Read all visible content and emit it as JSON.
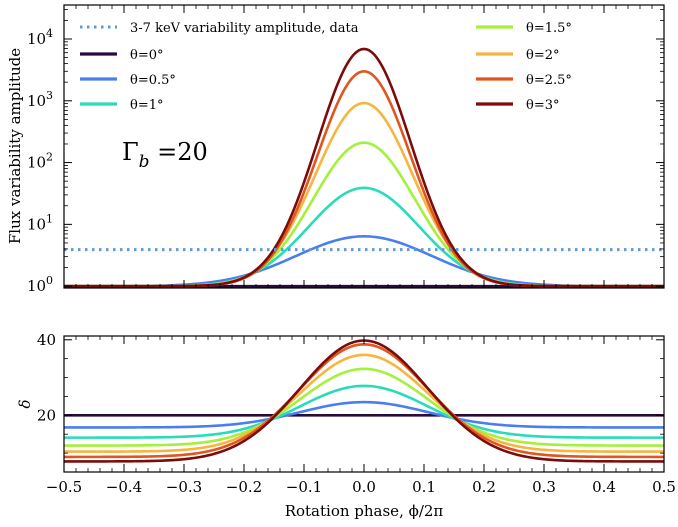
{
  "chart_data": [
    {
      "type": "line",
      "panel": "top",
      "xlim": [
        -0.5,
        0.5
      ],
      "ylim_log10": [
        -0.03,
        4.55
      ],
      "yscale": "log",
      "ylabel": "Flux variability amplitude",
      "annotation": "Γ_b =20",
      "annotation_parts": {
        "base": "Γ",
        "sub": "b",
        "rest": " =20"
      },
      "yticks": [
        {
          "value": 1,
          "base": "10",
          "exp": "0"
        },
        {
          "value": 10,
          "base": "10",
          "exp": "1"
        },
        {
          "value": 100,
          "base": "10",
          "exp": "2"
        },
        {
          "value": 1000,
          "base": "10",
          "exp": "3"
        },
        {
          "value": 10000,
          "base": "10",
          "exp": "4"
        }
      ],
      "reference_line": {
        "name": "3-7 keV variability amplitude, data",
        "y": 3.9,
        "color": "#5b9bd5",
        "style": "dotted"
      },
      "series": [
        {
          "name": "θ=0°",
          "color": "#2a0a3d",
          "peak": 1.0,
          "width": 0.16
        },
        {
          "name": "θ=0.5°",
          "color": "#4a7ef0",
          "peak": 6.4,
          "width": 0.16
        },
        {
          "name": "θ=1°",
          "color": "#29dcb8",
          "peak": 39,
          "width": 0.13
        },
        {
          "name": "θ=1.5°",
          "color": "#a4f03c",
          "peak": 210,
          "width": 0.12
        },
        {
          "name": "θ=2°",
          "color": "#f7b540",
          "peak": 920,
          "width": 0.115
        },
        {
          "name": "θ=2.5°",
          "color": "#e0561e",
          "peak": 3000,
          "width": 0.11
        },
        {
          "name": "θ=3°",
          "color": "#7a0c0c",
          "peak": 6900,
          "width": 0.11
        }
      ],
      "legend_placement": "top"
    },
    {
      "type": "line",
      "panel": "bottom",
      "xlim": [
        -0.5,
        0.5
      ],
      "ylim": [
        5,
        41
      ],
      "ylabel": "δ",
      "xlabel": "Rotation phase, ϕ/2π",
      "yticks": [
        20,
        40
      ],
      "xticks": [
        "−0.5",
        "−0.4",
        "−0.3",
        "−0.2",
        "−0.1",
        "0.0",
        "0.1",
        "0.2",
        "0.3",
        "0.4",
        "0.5"
      ],
      "xtick_values": [
        -0.5,
        -0.4,
        -0.3,
        -0.2,
        -0.1,
        0.0,
        0.1,
        0.2,
        0.3,
        0.4,
        0.5
      ],
      "series": [
        {
          "name": "θ=0°",
          "color": "#2a0a3d",
          "center": 20.0,
          "edge": 20.0
        },
        {
          "name": "θ=0.5°",
          "color": "#4a7ef0",
          "center": 23.5,
          "edge": 16.8
        },
        {
          "name": "θ=1°",
          "color": "#29dcb8",
          "center": 27.8,
          "edge": 14.1
        },
        {
          "name": "θ=1.5°",
          "color": "#a4f03c",
          "center": 32.3,
          "edge": 12.0
        },
        {
          "name": "θ=2°",
          "color": "#f7b540",
          "center": 36.0,
          "edge": 10.4
        },
        {
          "name": "θ=2.5°",
          "color": "#e0561e",
          "center": 38.8,
          "edge": 9.0
        },
        {
          "name": "θ=3°",
          "color": "#7a0c0c",
          "center": 39.8,
          "edge": 7.8
        }
      ]
    }
  ]
}
